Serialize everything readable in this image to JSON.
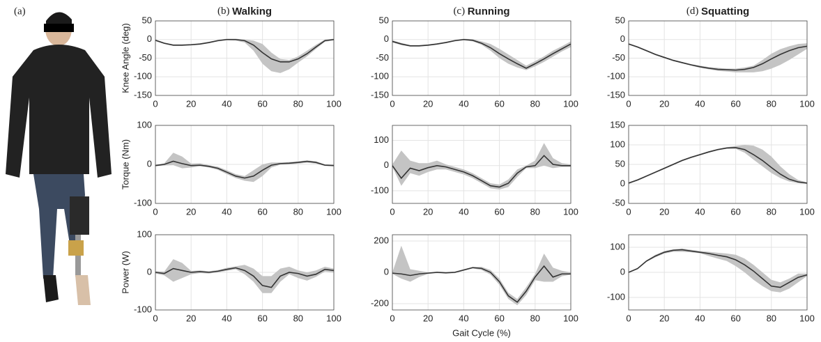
{
  "photo": {
    "label": "(a)"
  },
  "chart_data": [
    {
      "type": "line",
      "panel_label": "(b)",
      "title": "Walking",
      "ylabel": "Knee Angle (deg)",
      "x": [
        0,
        5,
        10,
        15,
        20,
        25,
        30,
        35,
        40,
        45,
        50,
        55,
        60,
        65,
        70,
        75,
        80,
        85,
        90,
        95,
        100
      ],
      "xlim": [
        0,
        100
      ],
      "xticks": [
        0,
        20,
        40,
        60,
        80,
        100
      ],
      "ylim": [
        -150,
        50
      ],
      "yticks": [
        -150,
        -100,
        -50,
        0,
        50
      ],
      "grid": true,
      "series": [
        {
          "color": "#333333",
          "band_color": "#c4c4c4",
          "values": [
            -2,
            -10,
            -15,
            -15,
            -14,
            -12,
            -8,
            -3,
            0,
            0,
            -3,
            -15,
            -35,
            -52,
            -60,
            -60,
            -52,
            -38,
            -20,
            -3,
            0
          ],
          "lower": [
            -4,
            -12,
            -17,
            -17,
            -16,
            -14,
            -10,
            -5,
            -2,
            -3,
            -8,
            -30,
            -65,
            -85,
            -90,
            -80,
            -62,
            -45,
            -25,
            -6,
            -2
          ],
          "upper": [
            0,
            -8,
            -13,
            -13,
            -12,
            -10,
            -6,
            -1,
            2,
            2,
            0,
            -3,
            -12,
            -35,
            -52,
            -55,
            -45,
            -30,
            -14,
            0,
            2
          ]
        }
      ]
    },
    {
      "type": "line",
      "panel_label": "(c)",
      "title": "Running",
      "x": [
        0,
        5,
        10,
        15,
        20,
        25,
        30,
        35,
        40,
        45,
        50,
        55,
        60,
        65,
        70,
        75,
        80,
        85,
        90,
        95,
        100
      ],
      "xlim": [
        0,
        100
      ],
      "xticks": [
        0,
        20,
        40,
        60,
        80,
        100
      ],
      "ylim": [
        -150,
        50
      ],
      "yticks": [
        -150,
        -100,
        -50,
        0,
        50
      ],
      "grid": true,
      "series": [
        {
          "color": "#333333",
          "band_color": "#c4c4c4",
          "values": [
            -5,
            -12,
            -17,
            -17,
            -15,
            -12,
            -8,
            -3,
            0,
            -2,
            -10,
            -22,
            -38,
            -52,
            -65,
            -77,
            -65,
            -52,
            -38,
            -25,
            -12
          ],
          "lower": [
            -8,
            -15,
            -19,
            -19,
            -17,
            -14,
            -10,
            -5,
            -2,
            -5,
            -14,
            -30,
            -50,
            -65,
            -75,
            -82,
            -72,
            -60,
            -46,
            -32,
            -20
          ],
          "upper": [
            -2,
            -9,
            -15,
            -15,
            -13,
            -10,
            -6,
            -1,
            2,
            1,
            -5,
            -12,
            -25,
            -40,
            -55,
            -70,
            -58,
            -45,
            -30,
            -18,
            -5
          ]
        }
      ]
    },
    {
      "type": "line",
      "panel_label": "(d)",
      "title": "Squatting",
      "x": [
        0,
        5,
        10,
        15,
        20,
        25,
        30,
        35,
        40,
        45,
        50,
        55,
        60,
        65,
        70,
        75,
        80,
        85,
        90,
        95,
        100
      ],
      "xlim": [
        0,
        100
      ],
      "xticks": [
        0,
        20,
        40,
        60,
        80,
        100
      ],
      "ylim": [
        -150,
        50
      ],
      "yticks": [
        -150,
        -100,
        -50,
        0,
        50
      ],
      "grid": true,
      "series": [
        {
          "color": "#333333",
          "band_color": "#c4c4c4",
          "values": [
            -12,
            -20,
            -30,
            -40,
            -48,
            -56,
            -62,
            -68,
            -73,
            -77,
            -80,
            -81,
            -82,
            -80,
            -75,
            -65,
            -52,
            -40,
            -30,
            -22,
            -18
          ],
          "lower": [
            -14,
            -22,
            -32,
            -42,
            -50,
            -58,
            -64,
            -70,
            -76,
            -80,
            -84,
            -86,
            -88,
            -88,
            -88,
            -85,
            -78,
            -68,
            -55,
            -40,
            -25
          ],
          "upper": [
            -10,
            -18,
            -28,
            -38,
            -46,
            -54,
            -60,
            -66,
            -70,
            -74,
            -76,
            -78,
            -78,
            -75,
            -70,
            -55,
            -38,
            -26,
            -18,
            -12,
            -10
          ]
        }
      ]
    },
    {
      "type": "line",
      "ylabel": "Torque (Nm)",
      "x": [
        0,
        5,
        10,
        15,
        20,
        25,
        30,
        35,
        40,
        45,
        50,
        55,
        60,
        65,
        70,
        75,
        80,
        85,
        90,
        95,
        100
      ],
      "xlim": [
        0,
        100
      ],
      "xticks": [
        0,
        20,
        40,
        60,
        80,
        100
      ],
      "ylim": [
        -100,
        100
      ],
      "yticks": [
        -100,
        0,
        100
      ],
      "grid": true,
      "series": [
        {
          "color": "#333333",
          "band_color": "#c4c4c4",
          "values": [
            -3,
            0,
            8,
            2,
            -3,
            -2,
            -5,
            -10,
            -20,
            -30,
            -35,
            -30,
            -15,
            -2,
            2,
            3,
            5,
            8,
            5,
            -2,
            -3
          ],
          "lower": [
            -5,
            -3,
            -2,
            -10,
            -8,
            -5,
            -8,
            -14,
            -25,
            -35,
            -42,
            -45,
            -30,
            -8,
            -1,
            0,
            2,
            4,
            2,
            -4,
            -5
          ],
          "upper": [
            -1,
            3,
            30,
            20,
            2,
            3,
            -2,
            -6,
            -15,
            -25,
            -30,
            -15,
            0,
            5,
            5,
            6,
            8,
            10,
            8,
            0,
            -1
          ]
        }
      ]
    },
    {
      "type": "line",
      "x": [
        0,
        5,
        10,
        15,
        20,
        25,
        30,
        35,
        40,
        45,
        50,
        55,
        60,
        65,
        70,
        75,
        80,
        85,
        90,
        95,
        100
      ],
      "xlim": [
        0,
        100
      ],
      "xticks": [
        0,
        20,
        40,
        60,
        80,
        100
      ],
      "ylim": [
        -150,
        160
      ],
      "yticks": [
        -100,
        0,
        100
      ],
      "grid": true,
      "series": [
        {
          "color": "#333333",
          "band_color": "#c4c4c4",
          "values": [
            0,
            -50,
            -10,
            -20,
            -8,
            0,
            -5,
            -15,
            -25,
            -40,
            -60,
            -80,
            -85,
            -70,
            -30,
            -5,
            0,
            40,
            5,
            0,
            0
          ],
          "lower": [
            -5,
            -80,
            -30,
            -40,
            -25,
            -15,
            -15,
            -25,
            -35,
            -50,
            -70,
            -90,
            -95,
            -85,
            -45,
            -10,
            -10,
            0,
            -10,
            -5,
            -5
          ],
          "upper": [
            5,
            60,
            20,
            10,
            10,
            20,
            5,
            -5,
            -15,
            -30,
            -50,
            -70,
            -75,
            -55,
            -15,
            0,
            20,
            90,
            30,
            10,
            5
          ]
        }
      ]
    },
    {
      "type": "line",
      "x": [
        0,
        5,
        10,
        15,
        20,
        25,
        30,
        35,
        40,
        45,
        50,
        55,
        60,
        65,
        70,
        75,
        80,
        85,
        90,
        95,
        100
      ],
      "xlim": [
        0,
        100
      ],
      "xticks": [
        0,
        20,
        40,
        60,
        80,
        100
      ],
      "ylim": [
        -50,
        150
      ],
      "yticks": [
        -50,
        0,
        50,
        100,
        150
      ],
      "grid": true,
      "series": [
        {
          "color": "#333333",
          "band_color": "#c4c4c4",
          "values": [
            2,
            10,
            20,
            30,
            40,
            50,
            60,
            68,
            75,
            82,
            88,
            92,
            93,
            88,
            75,
            60,
            42,
            25,
            12,
            5,
            2
          ],
          "lower": [
            0,
            8,
            18,
            28,
            38,
            48,
            58,
            66,
            73,
            80,
            86,
            90,
            90,
            80,
            62,
            45,
            28,
            15,
            6,
            2,
            0
          ],
          "upper": [
            4,
            12,
            22,
            32,
            42,
            52,
            62,
            70,
            77,
            84,
            90,
            94,
            97,
            100,
            98,
            88,
            70,
            45,
            25,
            10,
            4
          ]
        }
      ]
    },
    {
      "type": "line",
      "ylabel": "Power (W)",
      "x": [
        0,
        5,
        10,
        15,
        20,
        25,
        30,
        35,
        40,
        45,
        50,
        55,
        60,
        65,
        70,
        75,
        80,
        85,
        90,
        95,
        100
      ],
      "xlim": [
        0,
        100
      ],
      "xticks": [
        0,
        20,
        40,
        60,
        80,
        100
      ],
      "ylim": [
        -100,
        100
      ],
      "yticks": [
        -100,
        0,
        100
      ],
      "grid": true,
      "series": [
        {
          "color": "#333333",
          "band_color": "#c4c4c4",
          "values": [
            0,
            -3,
            10,
            5,
            0,
            2,
            0,
            3,
            8,
            12,
            5,
            -10,
            -35,
            -40,
            -10,
            0,
            -3,
            -10,
            -5,
            8,
            5
          ],
          "lower": [
            -3,
            -8,
            -25,
            -15,
            -5,
            -2,
            -3,
            0,
            4,
            8,
            -5,
            -25,
            -55,
            -55,
            -25,
            -5,
            -15,
            -22,
            -12,
            2,
            0
          ],
          "upper": [
            3,
            2,
            35,
            25,
            4,
            5,
            3,
            6,
            12,
            16,
            20,
            10,
            -10,
            -10,
            10,
            15,
            5,
            0,
            5,
            15,
            10
          ]
        }
      ]
    },
    {
      "type": "line",
      "xlabel": "Gait Cycle (%)",
      "x": [
        0,
        5,
        10,
        15,
        20,
        25,
        30,
        35,
        40,
        45,
        50,
        55,
        60,
        65,
        70,
        75,
        80,
        85,
        90,
        95,
        100
      ],
      "xlim": [
        0,
        100
      ],
      "xticks": [
        0,
        20,
        40,
        60,
        80,
        100
      ],
      "ylim": [
        -240,
        240
      ],
      "yticks": [
        -200,
        0,
        200
      ],
      "grid": true,
      "series": [
        {
          "color": "#333333",
          "band_color": "#c4c4c4",
          "values": [
            -5,
            -10,
            -20,
            -10,
            -5,
            0,
            -3,
            0,
            15,
            30,
            25,
            0,
            -60,
            -150,
            -190,
            -120,
            -30,
            40,
            -30,
            -10,
            -10
          ],
          "lower": [
            -10,
            -40,
            -60,
            -30,
            -10,
            -5,
            -8,
            -5,
            10,
            25,
            15,
            -15,
            -80,
            -170,
            -210,
            -145,
            -50,
            -60,
            -60,
            -25,
            -15
          ],
          "upper": [
            0,
            170,
            20,
            10,
            0,
            5,
            2,
            5,
            20,
            35,
            35,
            15,
            -40,
            -130,
            -170,
            -95,
            -10,
            120,
            30,
            10,
            0
          ]
        }
      ]
    },
    {
      "type": "line",
      "x": [
        0,
        5,
        10,
        15,
        20,
        25,
        30,
        35,
        40,
        45,
        50,
        55,
        60,
        65,
        70,
        75,
        80,
        85,
        90,
        95,
        100
      ],
      "xlim": [
        0,
        100
      ],
      "xticks": [
        0,
        20,
        40,
        60,
        80,
        100
      ],
      "ylim": [
        -150,
        150
      ],
      "yticks": [
        -100,
        0,
        100
      ],
      "grid": true,
      "series": [
        {
          "color": "#333333",
          "band_color": "#c4c4c4",
          "values": [
            0,
            15,
            45,
            65,
            80,
            88,
            90,
            85,
            80,
            75,
            68,
            62,
            50,
            30,
            5,
            -25,
            -55,
            -60,
            -40,
            -20,
            -10
          ],
          "lower": [
            -2,
            12,
            42,
            60,
            75,
            82,
            82,
            80,
            76,
            65,
            55,
            45,
            25,
            0,
            -30,
            -55,
            -75,
            -80,
            -65,
            -40,
            -15
          ],
          "upper": [
            2,
            18,
            48,
            70,
            85,
            92,
            95,
            90,
            85,
            82,
            78,
            75,
            70,
            55,
            30,
            0,
            -30,
            -40,
            -25,
            -5,
            -5
          ]
        }
      ]
    }
  ]
}
